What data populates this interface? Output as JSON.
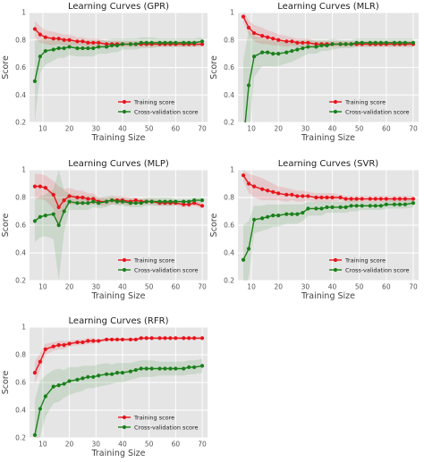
{
  "colors": {
    "panel_bg": "#e5e5e5",
    "grid": "#ffffff",
    "training": "#e8131b",
    "cv": "#1a7f1a"
  },
  "legend": {
    "training_label": "Training score",
    "cv_label": "Cross-validation score",
    "placement": "lower right"
  },
  "chart_data": [
    {
      "type": "line",
      "title": "Learning Curves (GPR)",
      "xlabel": "Training Size",
      "ylabel": "Score",
      "xlim": [
        5,
        72
      ],
      "ylim": [
        0.2,
        1.0
      ],
      "xticks": [
        10,
        20,
        30,
        40,
        50,
        60,
        70
      ],
      "yticks": [
        0.2,
        0.4,
        0.6,
        0.8,
        1.0
      ],
      "grid": true,
      "x": [
        7,
        9,
        11,
        14,
        16,
        18,
        20,
        23,
        25,
        27,
        29,
        31,
        34,
        36,
        38,
        40,
        43,
        45,
        47,
        49,
        51,
        54,
        56,
        58,
        60,
        63,
        65,
        67,
        70
      ],
      "series": [
        {
          "name": "Training score",
          "values": [
            0.88,
            0.84,
            0.82,
            0.81,
            0.81,
            0.8,
            0.8,
            0.79,
            0.79,
            0.78,
            0.78,
            0.78,
            0.77,
            0.77,
            0.77,
            0.77,
            0.77,
            0.77,
            0.77,
            0.77,
            0.77,
            0.77,
            0.77,
            0.77,
            0.77,
            0.77,
            0.77,
            0.77,
            0.77
          ],
          "band": [
            0.06,
            0.06,
            0.05,
            0.05,
            0.04,
            0.04,
            0.04,
            0.03,
            0.03,
            0.03,
            0.03,
            0.03,
            0.02,
            0.02,
            0.02,
            0.02,
            0.02,
            0.02,
            0.02,
            0.02,
            0.02,
            0.02,
            0.02,
            0.02,
            0.02,
            0.02,
            0.02,
            0.02,
            0.02
          ]
        },
        {
          "name": "Cross-validation score",
          "values": [
            0.5,
            0.68,
            0.72,
            0.73,
            0.74,
            0.74,
            0.75,
            0.74,
            0.74,
            0.74,
            0.74,
            0.75,
            0.75,
            0.76,
            0.76,
            0.77,
            0.77,
            0.77,
            0.78,
            0.78,
            0.78,
            0.78,
            0.78,
            0.78,
            0.78,
            0.78,
            0.78,
            0.78,
            0.79
          ],
          "band": [
            0.3,
            0.12,
            0.1,
            0.08,
            0.07,
            0.07,
            0.06,
            0.06,
            0.06,
            0.06,
            0.06,
            0.05,
            0.05,
            0.05,
            0.05,
            0.04,
            0.04,
            0.04,
            0.04,
            0.04,
            0.04,
            0.03,
            0.03,
            0.03,
            0.03,
            0.03,
            0.03,
            0.03,
            0.03
          ]
        }
      ]
    },
    {
      "type": "line",
      "title": "Learning Curves (MLR)",
      "xlabel": "Training Size",
      "ylabel": "Score",
      "xlim": [
        5,
        72
      ],
      "ylim": [
        0.2,
        1.0
      ],
      "xticks": [
        10,
        20,
        30,
        40,
        50,
        60,
        70
      ],
      "yticks": [
        0.2,
        0.4,
        0.6,
        0.8,
        1.0
      ],
      "grid": true,
      "x": [
        7,
        9,
        11,
        14,
        16,
        18,
        20,
        23,
        25,
        27,
        29,
        31,
        34,
        36,
        38,
        40,
        43,
        45,
        47,
        49,
        51,
        54,
        56,
        58,
        60,
        63,
        65,
        67,
        70
      ],
      "series": [
        {
          "name": "Training score",
          "values": [
            0.97,
            0.89,
            0.85,
            0.83,
            0.82,
            0.81,
            0.8,
            0.79,
            0.79,
            0.78,
            0.78,
            0.78,
            0.77,
            0.77,
            0.77,
            0.77,
            0.77,
            0.77,
            0.77,
            0.77,
            0.77,
            0.77,
            0.77,
            0.77,
            0.77,
            0.77,
            0.77,
            0.77,
            0.77
          ],
          "band": [
            0.04,
            0.05,
            0.06,
            0.06,
            0.05,
            0.05,
            0.04,
            0.04,
            0.03,
            0.03,
            0.03,
            0.03,
            0.02,
            0.02,
            0.02,
            0.02,
            0.02,
            0.02,
            0.02,
            0.02,
            0.02,
            0.02,
            0.02,
            0.02,
            0.02,
            0.02,
            0.02,
            0.02,
            0.02
          ]
        },
        {
          "name": "Cross-validation score",
          "values": [
            0.05,
            0.47,
            0.68,
            0.71,
            0.71,
            0.7,
            0.7,
            0.71,
            0.72,
            0.73,
            0.74,
            0.75,
            0.75,
            0.76,
            0.76,
            0.77,
            0.77,
            0.77,
            0.77,
            0.78,
            0.78,
            0.78,
            0.78,
            0.78,
            0.78,
            0.78,
            0.78,
            0.78,
            0.78
          ],
          "band": [
            0.6,
            0.4,
            0.15,
            0.1,
            0.1,
            0.09,
            0.09,
            0.08,
            0.08,
            0.07,
            0.06,
            0.05,
            0.05,
            0.04,
            0.04,
            0.04,
            0.03,
            0.03,
            0.03,
            0.03,
            0.03,
            0.03,
            0.03,
            0.03,
            0.03,
            0.03,
            0.03,
            0.03,
            0.03
          ]
        }
      ]
    },
    {
      "type": "line",
      "title": "Learning Curves (MLP)",
      "xlabel": "Training Size",
      "ylabel": "Score",
      "xlim": [
        5,
        72
      ],
      "ylim": [
        0.2,
        1.0
      ],
      "xticks": [
        10,
        20,
        30,
        40,
        50,
        60,
        70
      ],
      "yticks": [
        0.2,
        0.4,
        0.6,
        0.8,
        1.0
      ],
      "grid": true,
      "x": [
        7,
        9,
        11,
        14,
        16,
        18,
        20,
        23,
        25,
        27,
        29,
        31,
        34,
        36,
        38,
        40,
        43,
        45,
        47,
        49,
        51,
        54,
        56,
        58,
        60,
        63,
        65,
        67,
        70
      ],
      "series": [
        {
          "name": "Training score",
          "values": [
            0.88,
            0.88,
            0.87,
            0.82,
            0.73,
            0.78,
            0.81,
            0.8,
            0.8,
            0.79,
            0.79,
            0.77,
            0.77,
            0.78,
            0.78,
            0.78,
            0.77,
            0.78,
            0.77,
            0.77,
            0.77,
            0.76,
            0.76,
            0.76,
            0.76,
            0.75,
            0.75,
            0.76,
            0.74
          ],
          "band": [
            0.09,
            0.09,
            0.09,
            0.1,
            0.15,
            0.08,
            0.06,
            0.05,
            0.05,
            0.04,
            0.04,
            0.03,
            0.03,
            0.03,
            0.03,
            0.03,
            0.03,
            0.02,
            0.02,
            0.02,
            0.02,
            0.02,
            0.02,
            0.02,
            0.02,
            0.02,
            0.02,
            0.02,
            0.02
          ]
        },
        {
          "name": "Cross-validation score",
          "values": [
            0.63,
            0.66,
            0.67,
            0.68,
            0.6,
            0.7,
            0.77,
            0.76,
            0.76,
            0.76,
            0.77,
            0.76,
            0.77,
            0.78,
            0.77,
            0.77,
            0.76,
            0.76,
            0.76,
            0.77,
            0.77,
            0.77,
            0.77,
            0.77,
            0.77,
            0.77,
            0.77,
            0.78,
            0.78
          ],
          "band": [
            0.15,
            0.15,
            0.15,
            0.18,
            0.4,
            0.15,
            0.06,
            0.05,
            0.05,
            0.05,
            0.04,
            0.04,
            0.04,
            0.03,
            0.03,
            0.03,
            0.03,
            0.03,
            0.03,
            0.03,
            0.03,
            0.03,
            0.03,
            0.03,
            0.02,
            0.02,
            0.02,
            0.02,
            0.02
          ]
        }
      ]
    },
    {
      "type": "line",
      "title": "Learning Curves (SVR)",
      "xlabel": "Training Size",
      "ylabel": "Score",
      "xlim": [
        5,
        72
      ],
      "ylim": [
        0.2,
        1.0
      ],
      "xticks": [
        10,
        20,
        30,
        40,
        50,
        60,
        70
      ],
      "yticks": [
        0.2,
        0.4,
        0.6,
        0.8,
        1.0
      ],
      "grid": true,
      "x": [
        7,
        9,
        11,
        14,
        16,
        18,
        20,
        23,
        25,
        27,
        29,
        31,
        34,
        36,
        38,
        40,
        43,
        45,
        47,
        49,
        51,
        54,
        56,
        58,
        60,
        63,
        65,
        67,
        70
      ],
      "series": [
        {
          "name": "Training score",
          "values": [
            0.96,
            0.9,
            0.88,
            0.86,
            0.85,
            0.84,
            0.83,
            0.82,
            0.82,
            0.81,
            0.81,
            0.81,
            0.8,
            0.8,
            0.8,
            0.8,
            0.8,
            0.79,
            0.79,
            0.79,
            0.79,
            0.79,
            0.79,
            0.79,
            0.79,
            0.79,
            0.79,
            0.79,
            0.79
          ],
          "band": [
            0.04,
            0.07,
            0.08,
            0.08,
            0.07,
            0.06,
            0.05,
            0.05,
            0.04,
            0.04,
            0.04,
            0.03,
            0.03,
            0.03,
            0.03,
            0.03,
            0.02,
            0.02,
            0.02,
            0.02,
            0.02,
            0.02,
            0.02,
            0.02,
            0.02,
            0.02,
            0.02,
            0.02,
            0.02
          ]
        },
        {
          "name": "Cross-validation score",
          "values": [
            0.35,
            0.43,
            0.64,
            0.65,
            0.66,
            0.67,
            0.67,
            0.68,
            0.68,
            0.68,
            0.69,
            0.72,
            0.72,
            0.72,
            0.73,
            0.73,
            0.73,
            0.73,
            0.74,
            0.74,
            0.74,
            0.74,
            0.74,
            0.74,
            0.75,
            0.75,
            0.75,
            0.75,
            0.76
          ],
          "band": [
            0.25,
            0.2,
            0.1,
            0.09,
            0.09,
            0.08,
            0.08,
            0.07,
            0.07,
            0.07,
            0.06,
            0.05,
            0.05,
            0.05,
            0.04,
            0.04,
            0.04,
            0.04,
            0.04,
            0.04,
            0.03,
            0.03,
            0.03,
            0.03,
            0.03,
            0.03,
            0.03,
            0.03,
            0.03
          ]
        }
      ]
    },
    {
      "type": "line",
      "title": "Learning Curves (RFR)",
      "xlabel": "Training Size",
      "ylabel": "Score",
      "xlim": [
        5,
        72
      ],
      "ylim": [
        0.2,
        1.0
      ],
      "xticks": [
        10,
        20,
        30,
        40,
        50,
        60,
        70
      ],
      "yticks": [
        0.2,
        0.4,
        0.6,
        0.8,
        1.0
      ],
      "grid": true,
      "x": [
        7,
        9,
        11,
        14,
        16,
        18,
        20,
        23,
        25,
        27,
        29,
        31,
        34,
        36,
        38,
        40,
        43,
        45,
        47,
        49,
        51,
        54,
        56,
        58,
        60,
        63,
        65,
        67,
        70
      ],
      "series": [
        {
          "name": "Training score",
          "values": [
            0.67,
            0.75,
            0.84,
            0.86,
            0.87,
            0.87,
            0.88,
            0.89,
            0.89,
            0.9,
            0.9,
            0.9,
            0.91,
            0.91,
            0.91,
            0.91,
            0.91,
            0.91,
            0.92,
            0.92,
            0.92,
            0.92,
            0.92,
            0.92,
            0.92,
            0.92,
            0.92,
            0.92,
            0.92
          ],
          "band": [
            0.08,
            0.06,
            0.04,
            0.03,
            0.03,
            0.03,
            0.02,
            0.02,
            0.02,
            0.02,
            0.02,
            0.01,
            0.01,
            0.01,
            0.01,
            0.01,
            0.01,
            0.01,
            0.01,
            0.01,
            0.01,
            0.01,
            0.01,
            0.01,
            0.01,
            0.01,
            0.01,
            0.01,
            0.01
          ]
        },
        {
          "name": "Cross-validation score",
          "values": [
            0.22,
            0.41,
            0.5,
            0.57,
            0.58,
            0.59,
            0.61,
            0.62,
            0.63,
            0.64,
            0.64,
            0.65,
            0.66,
            0.66,
            0.67,
            0.67,
            0.68,
            0.69,
            0.7,
            0.7,
            0.7,
            0.7,
            0.7,
            0.7,
            0.7,
            0.7,
            0.71,
            0.71,
            0.72
          ],
          "band": [
            0.25,
            0.2,
            0.15,
            0.12,
            0.12,
            0.1,
            0.1,
            0.09,
            0.09,
            0.08,
            0.08,
            0.08,
            0.08,
            0.07,
            0.07,
            0.07,
            0.06,
            0.06,
            0.06,
            0.06,
            0.06,
            0.05,
            0.05,
            0.05,
            0.05,
            0.05,
            0.05,
            0.05,
            0.05
          ]
        }
      ]
    }
  ]
}
